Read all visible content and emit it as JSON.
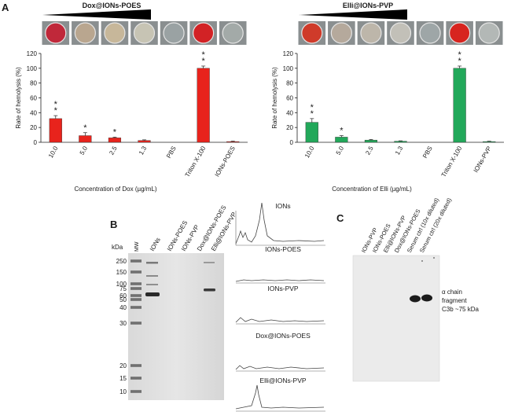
{
  "panels": {
    "a": "A",
    "b": "B",
    "c": "C"
  },
  "chart_data": [
    {
      "type": "bar",
      "title": "Dox@IONs-POES",
      "xlabel": "Concentration of Dox (µg/mL)",
      "ylabel": "Rate of hemolysis (%)",
      "ylim": [
        0,
        120
      ],
      "yticks": [
        0,
        20,
        40,
        60,
        80,
        100,
        120
      ],
      "categories": [
        "10.0",
        "5.0",
        "2.5",
        "1.3",
        "PBS",
        "Triton X-100",
        "IONs-POES"
      ],
      "values": [
        32,
        9,
        6,
        2.5,
        0,
        100,
        1
      ],
      "errors": [
        4,
        4,
        1,
        0.8,
        0,
        3,
        0.6
      ],
      "significance": [
        "**",
        "*",
        "*",
        "",
        "",
        "**",
        ""
      ],
      "color": "#e8231c",
      "well_colors": [
        "#c0283a",
        "#b9a68f",
        "#c7b79a",
        "#c7c4b4",
        "#9aa2a3",
        "#d22225",
        "#a3aaa8"
      ]
    },
    {
      "type": "bar",
      "title": "Elli@IONs-PVP",
      "xlabel": "Concentration of Elli (µg/mL)",
      "ylabel": "Rate of hemolysis (%)",
      "ylim": [
        0,
        120
      ],
      "yticks": [
        0,
        20,
        40,
        60,
        80,
        100,
        120
      ],
      "categories": [
        "10.0",
        "5.0",
        "2.5",
        "1.3",
        "PBS",
        "Triton X-100",
        "IONs-PVP"
      ],
      "values": [
        27,
        7,
        3,
        1.5,
        0,
        100,
        1
      ],
      "errors": [
        5,
        2,
        0.8,
        0.5,
        0,
        3,
        0.5
      ],
      "significance": [
        "**",
        "*",
        "",
        "",
        "",
        "**",
        ""
      ],
      "color": "#22a85a",
      "well_colors": [
        "#cf3b2a",
        "#b5a99c",
        "#bdb6aa",
        "#c2c0b8",
        "#9ea6a7",
        "#d7241f",
        "#b3b8b6"
      ]
    }
  ],
  "gel": {
    "mw_label": "MW",
    "kda_label": "kDa",
    "lanes": [
      "IONs",
      "IONs-POES",
      "IONs-PVP",
      "Dox@IONs-POES",
      "Elli@IONs-PVP"
    ],
    "markers": [
      "250",
      "150",
      "100",
      "75",
      "60",
      "50",
      "40",
      "30",
      "20",
      "15",
      "10"
    ]
  },
  "profiles": [
    "IONs",
    "IONs-POES",
    "IONs-PVP",
    "Dox@IONs-POES",
    "Elli@IONs-PVP"
  ],
  "blot": {
    "lanes": [
      "IONs-PVP",
      "IONs-POES",
      "Elli@IONs-PVP",
      "Dox@IONs-POES",
      "Serum ctrl (10x diluted)",
      "Serum ctrl (20x diluted)"
    ],
    "annotation": [
      "α chain",
      "fragment",
      "C3b  ~75 kDa"
    ]
  }
}
